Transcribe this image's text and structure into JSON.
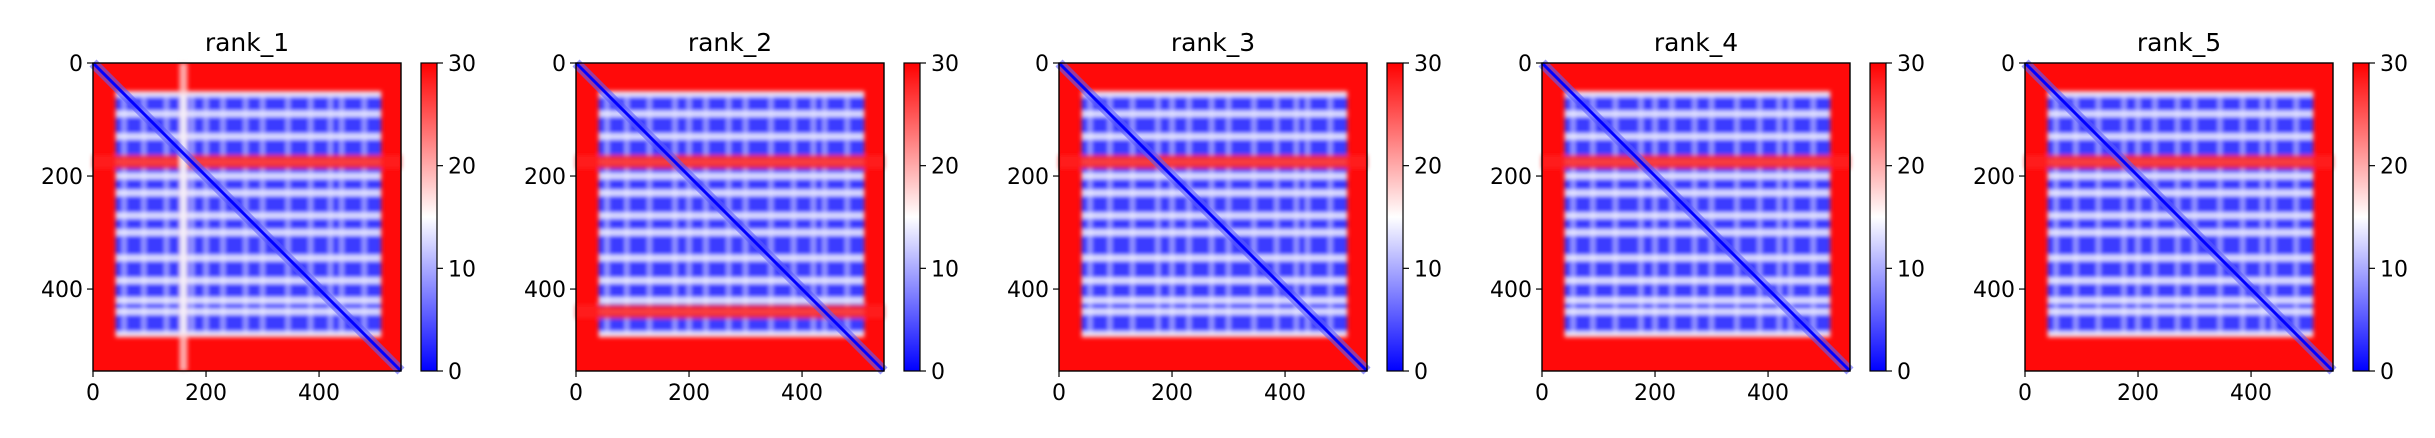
{
  "chart_data": [
    {
      "type": "heatmap",
      "title": "rank_1",
      "xlim": [
        0,
        545
      ],
      "ylim": [
        545,
        0
      ],
      "xticks": [
        0,
        200,
        400
      ],
      "yticks": [
        0,
        200,
        400
      ],
      "colorbar": {
        "range": [
          0,
          30
        ],
        "ticks": [
          0,
          10,
          20,
          30
        ],
        "colors": [
          "#0000ff",
          "#ffffff",
          "#ff0000"
        ]
      },
      "bands": [
        175
      ],
      "vlines": [
        160
      ]
    },
    {
      "type": "heatmap",
      "title": "rank_2",
      "xlim": [
        0,
        545
      ],
      "ylim": [
        545,
        0
      ],
      "xticks": [
        0,
        200,
        400
      ],
      "yticks": [
        0,
        200,
        400
      ],
      "colorbar": {
        "range": [
          0,
          30
        ],
        "ticks": [
          0,
          10,
          20,
          30
        ],
        "colors": [
          "#0000ff",
          "#ffffff",
          "#ff0000"
        ]
      },
      "bands": [
        175,
        440
      ],
      "vlines": []
    },
    {
      "type": "heatmap",
      "title": "rank_3",
      "xlim": [
        0,
        545
      ],
      "ylim": [
        545,
        0
      ],
      "xticks": [
        0,
        200,
        400
      ],
      "yticks": [
        0,
        200,
        400
      ],
      "colorbar": {
        "range": [
          0,
          30
        ],
        "ticks": [
          0,
          10,
          20,
          30
        ],
        "colors": [
          "#0000ff",
          "#ffffff",
          "#ff0000"
        ]
      },
      "bands": [
        175
      ],
      "vlines": []
    },
    {
      "type": "heatmap",
      "title": "rank_4",
      "xlim": [
        0,
        545
      ],
      "ylim": [
        545,
        0
      ],
      "xticks": [
        0,
        200,
        400
      ],
      "yticks": [
        0,
        200,
        400
      ],
      "colorbar": {
        "range": [
          0,
          30
        ],
        "ticks": [
          0,
          10,
          20,
          30
        ],
        "colors": [
          "#0000ff",
          "#ffffff",
          "#ff0000"
        ]
      },
      "bands": [
        175
      ],
      "vlines": []
    },
    {
      "type": "heatmap",
      "title": "rank_5",
      "xlim": [
        0,
        545
      ],
      "ylim": [
        545,
        0
      ],
      "xticks": [
        0,
        200,
        400
      ],
      "yticks": [
        0,
        200,
        400
      ],
      "colorbar": {
        "range": [
          0,
          30
        ],
        "ticks": [
          0,
          10,
          20,
          30
        ],
        "colors": [
          "#0000ff",
          "#ffffff",
          "#ff0000"
        ]
      },
      "bands": [
        175
      ],
      "vlines": []
    }
  ]
}
